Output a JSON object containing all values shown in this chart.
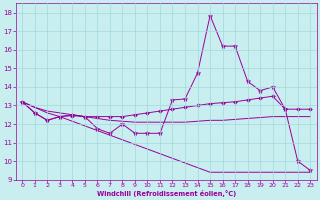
{
  "xlabel": "Windchill (Refroidissement éolien,°C)",
  "background_color": "#c8eef0",
  "grid_color": "#a0d8dc",
  "line_color": "#990099",
  "xlim": [
    -0.5,
    23.5
  ],
  "ylim": [
    9,
    18.5
  ],
  "xticks": [
    0,
    1,
    2,
    3,
    4,
    5,
    6,
    7,
    8,
    9,
    10,
    11,
    12,
    13,
    14,
    15,
    16,
    17,
    18,
    19,
    20,
    21,
    22,
    23
  ],
  "yticks": [
    9,
    10,
    11,
    12,
    13,
    14,
    15,
    16,
    17,
    18
  ],
  "series1_x": [
    0,
    1,
    2,
    3,
    4,
    5,
    6,
    7,
    8,
    9,
    10,
    11,
    12,
    13,
    14,
    15,
    16,
    17,
    18,
    19,
    20,
    21,
    22,
    23
  ],
  "series1_y": [
    13.2,
    12.6,
    12.2,
    12.4,
    12.5,
    12.4,
    11.75,
    11.5,
    12.0,
    11.5,
    11.5,
    11.5,
    13.3,
    13.35,
    14.75,
    17.85,
    16.2,
    16.2,
    14.3,
    13.8,
    14.0,
    12.8,
    10.0,
    9.5
  ],
  "series2_x": [
    0,
    1,
    2,
    3,
    4,
    5,
    6,
    7,
    8,
    9,
    10,
    11,
    12,
    13,
    14,
    15,
    16,
    17,
    18,
    19,
    20,
    21,
    22,
    23
  ],
  "series2_y": [
    13.2,
    12.6,
    12.2,
    12.4,
    12.45,
    12.4,
    12.4,
    12.4,
    12.4,
    12.5,
    12.6,
    12.7,
    12.8,
    12.9,
    13.0,
    13.1,
    13.15,
    13.2,
    13.3,
    13.4,
    13.5,
    12.8,
    12.8,
    12.8
  ],
  "series3_x": [
    0,
    1,
    2,
    3,
    4,
    5,
    6,
    7,
    8,
    9,
    10,
    11,
    12,
    13,
    14,
    15,
    16,
    17,
    18,
    19,
    20,
    21,
    22,
    23
  ],
  "series3_y": [
    13.2,
    12.9,
    12.7,
    12.6,
    12.5,
    12.4,
    12.3,
    12.2,
    12.15,
    12.1,
    12.1,
    12.1,
    12.1,
    12.1,
    12.15,
    12.2,
    12.2,
    12.25,
    12.3,
    12.35,
    12.4,
    12.4,
    12.4,
    12.4
  ],
  "series4_x": [
    0,
    1,
    2,
    3,
    4,
    5,
    6,
    7,
    8,
    9,
    10,
    11,
    12,
    13,
    14,
    15,
    16,
    17,
    18,
    19,
    20,
    21,
    22,
    23
  ],
  "series4_y": [
    13.2,
    12.9,
    12.6,
    12.4,
    12.15,
    11.9,
    11.65,
    11.4,
    11.15,
    10.9,
    10.65,
    10.4,
    10.15,
    9.9,
    9.65,
    9.4,
    9.4,
    9.4,
    9.4,
    9.4,
    9.4,
    9.4,
    9.4,
    9.4
  ]
}
